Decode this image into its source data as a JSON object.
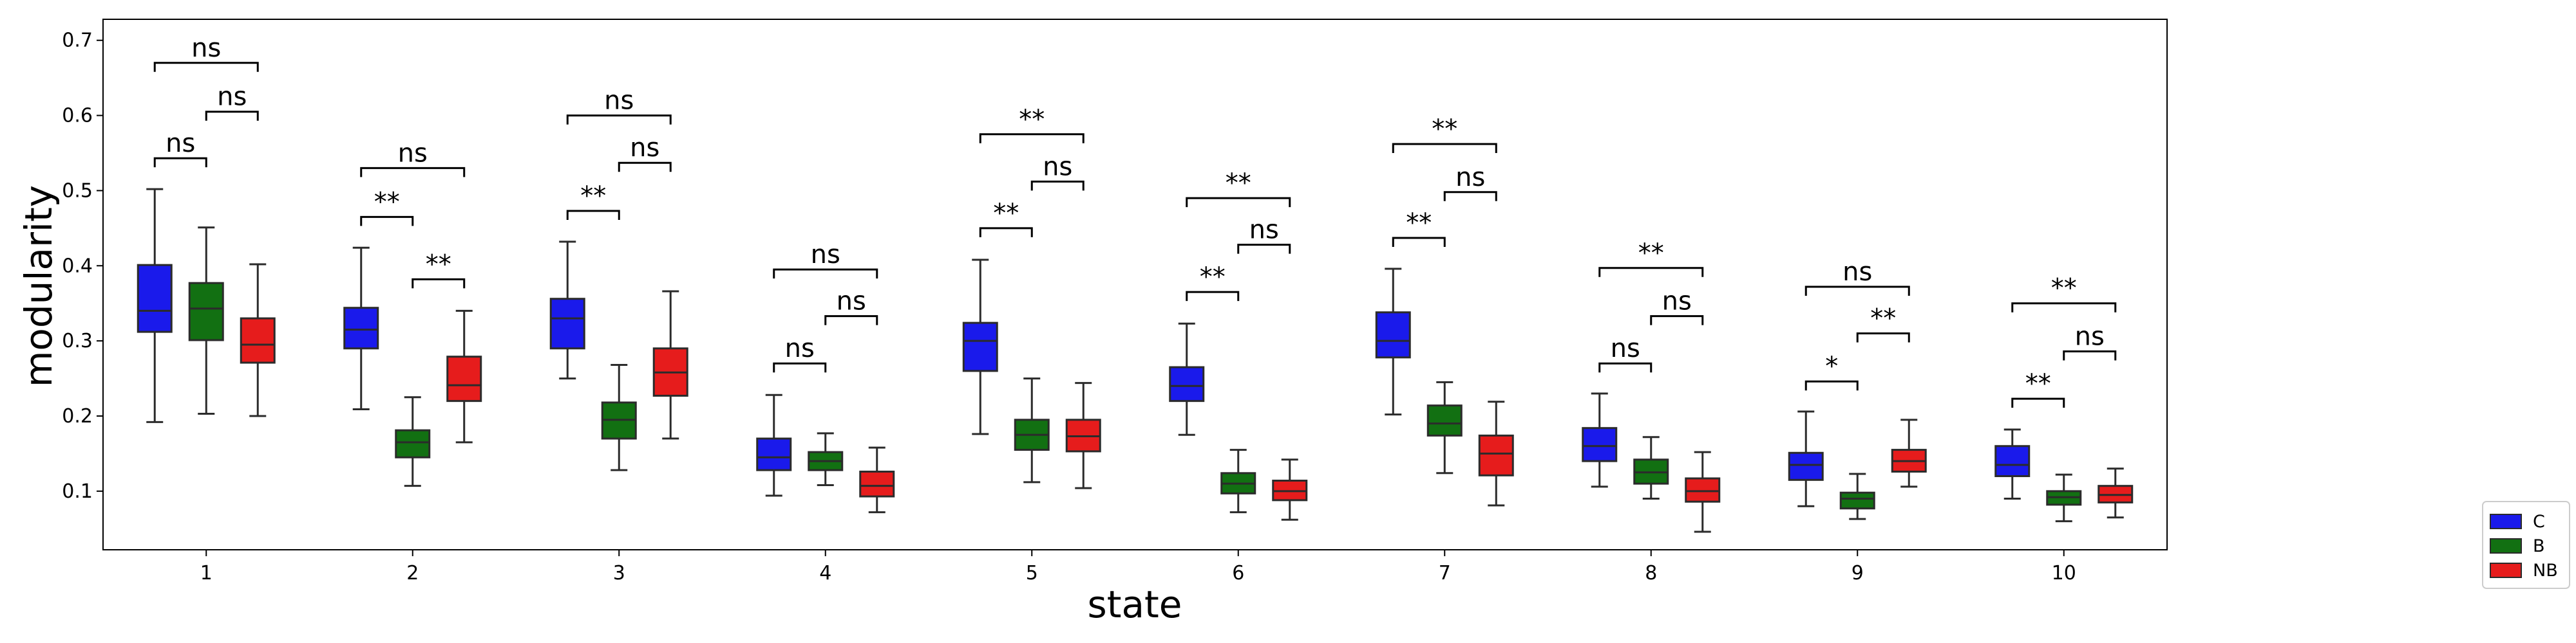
{
  "chart_data": {
    "type": "box",
    "title": "",
    "xlabel": "state",
    "ylabel": "modularity",
    "ylim": [
      0.022,
      0.728
    ],
    "yticks": [
      0.1,
      0.2,
      0.3,
      0.4,
      0.5,
      0.6,
      0.7
    ],
    "ytick_labels": [
      "0.1",
      "0.2",
      "0.3",
      "0.4",
      "0.5",
      "0.6",
      "0.7"
    ],
    "categories": [
      "1",
      "2",
      "3",
      "4",
      "5",
      "6",
      "7",
      "8",
      "9",
      "10"
    ],
    "grid": false,
    "legend": {
      "placement": "outside-right-bottom",
      "entries": [
        {
          "name": "C",
          "color": "#1a1aeb"
        },
        {
          "name": "B",
          "color": "#127012"
        },
        {
          "name": "NB",
          "color": "#e61c1c"
        }
      ]
    },
    "series": [
      {
        "name": "C",
        "color": "#1a1aeb",
        "boxes": [
          {
            "whislo": 0.192,
            "q1": 0.312,
            "med": 0.34,
            "q3": 0.401,
            "whishi": 0.502
          },
          {
            "whislo": 0.209,
            "q1": 0.29,
            "med": 0.315,
            "q3": 0.344,
            "whishi": 0.424
          },
          {
            "whislo": 0.25,
            "q1": 0.29,
            "med": 0.33,
            "q3": 0.356,
            "whishi": 0.432
          },
          {
            "whislo": 0.094,
            "q1": 0.128,
            "med": 0.145,
            "q3": 0.17,
            "whishi": 0.228
          },
          {
            "whislo": 0.176,
            "q1": 0.26,
            "med": 0.3,
            "q3": 0.324,
            "whishi": 0.408
          },
          {
            "whislo": 0.175,
            "q1": 0.22,
            "med": 0.24,
            "q3": 0.265,
            "whishi": 0.323
          },
          {
            "whislo": 0.202,
            "q1": 0.278,
            "med": 0.3,
            "q3": 0.338,
            "whishi": 0.396
          },
          {
            "whislo": 0.106,
            "q1": 0.14,
            "med": 0.16,
            "q3": 0.184,
            "whishi": 0.23
          },
          {
            "whislo": 0.08,
            "q1": 0.115,
            "med": 0.135,
            "q3": 0.151,
            "whishi": 0.206
          },
          {
            "whislo": 0.09,
            "q1": 0.12,
            "med": 0.135,
            "q3": 0.16,
            "whishi": 0.182
          }
        ]
      },
      {
        "name": "B",
        "color": "#127012",
        "boxes": [
          {
            "whislo": 0.203,
            "q1": 0.301,
            "med": 0.343,
            "q3": 0.377,
            "whishi": 0.451
          },
          {
            "whislo": 0.107,
            "q1": 0.145,
            "med": 0.165,
            "q3": 0.181,
            "whishi": 0.225
          },
          {
            "whislo": 0.128,
            "q1": 0.17,
            "med": 0.195,
            "q3": 0.218,
            "whishi": 0.268
          },
          {
            "whislo": 0.108,
            "q1": 0.128,
            "med": 0.14,
            "q3": 0.152,
            "whishi": 0.177
          },
          {
            "whislo": 0.112,
            "q1": 0.155,
            "med": 0.175,
            "q3": 0.195,
            "whishi": 0.25
          },
          {
            "whislo": 0.072,
            "q1": 0.097,
            "med": 0.11,
            "q3": 0.124,
            "whishi": 0.155
          },
          {
            "whislo": 0.124,
            "q1": 0.174,
            "med": 0.19,
            "q3": 0.214,
            "whishi": 0.245
          },
          {
            "whislo": 0.09,
            "q1": 0.11,
            "med": 0.125,
            "q3": 0.142,
            "whishi": 0.172
          },
          {
            "whislo": 0.063,
            "q1": 0.077,
            "med": 0.09,
            "q3": 0.098,
            "whishi": 0.123
          },
          {
            "whislo": 0.06,
            "q1": 0.082,
            "med": 0.092,
            "q3": 0.1,
            "whishi": 0.122
          }
        ]
      },
      {
        "name": "NB",
        "color": "#e61c1c",
        "boxes": [
          {
            "whislo": 0.2,
            "q1": 0.271,
            "med": 0.295,
            "q3": 0.33,
            "whishi": 0.402
          },
          {
            "whislo": 0.165,
            "q1": 0.22,
            "med": 0.241,
            "q3": 0.279,
            "whishi": 0.34
          },
          {
            "whislo": 0.17,
            "q1": 0.227,
            "med": 0.258,
            "q3": 0.29,
            "whishi": 0.366
          },
          {
            "whislo": 0.072,
            "q1": 0.093,
            "med": 0.107,
            "q3": 0.126,
            "whishi": 0.158
          },
          {
            "whislo": 0.104,
            "q1": 0.153,
            "med": 0.173,
            "q3": 0.195,
            "whishi": 0.244
          },
          {
            "whislo": 0.062,
            "q1": 0.088,
            "med": 0.1,
            "q3": 0.114,
            "whishi": 0.142
          },
          {
            "whislo": 0.081,
            "q1": 0.121,
            "med": 0.15,
            "q3": 0.174,
            "whishi": 0.219
          },
          {
            "whislo": 0.046,
            "q1": 0.086,
            "med": 0.1,
            "q3": 0.117,
            "whishi": 0.152
          },
          {
            "whislo": 0.106,
            "q1": 0.126,
            "med": 0.14,
            "q3": 0.155,
            "whishi": 0.195
          },
          {
            "whislo": 0.065,
            "q1": 0.085,
            "med": 0.095,
            "q3": 0.107,
            "whishi": 0.13
          }
        ]
      }
    ],
    "annotations": [
      {
        "category": 1,
        "from": "C",
        "to": "B",
        "label": "ns",
        "y": 0.543
      },
      {
        "category": 1,
        "from": "B",
        "to": "NB",
        "label": "ns",
        "y": 0.605
      },
      {
        "category": 1,
        "from": "C",
        "to": "NB",
        "label": "ns",
        "y": 0.67
      },
      {
        "category": 2,
        "from": "C",
        "to": "B",
        "label": "**",
        "y": 0.465
      },
      {
        "category": 2,
        "from": "B",
        "to": "NB",
        "label": "**",
        "y": 0.382
      },
      {
        "category": 2,
        "from": "C",
        "to": "NB",
        "label": "ns",
        "y": 0.53
      },
      {
        "category": 3,
        "from": "C",
        "to": "B",
        "label": "**",
        "y": 0.473
      },
      {
        "category": 3,
        "from": "B",
        "to": "NB",
        "label": "ns",
        "y": 0.537
      },
      {
        "category": 3,
        "from": "C",
        "to": "NB",
        "label": "ns",
        "y": 0.6
      },
      {
        "category": 4,
        "from": "C",
        "to": "B",
        "label": "ns",
        "y": 0.27
      },
      {
        "category": 4,
        "from": "B",
        "to": "NB",
        "label": "ns",
        "y": 0.333
      },
      {
        "category": 4,
        "from": "C",
        "to": "NB",
        "label": "ns",
        "y": 0.395
      },
      {
        "category": 5,
        "from": "C",
        "to": "B",
        "label": "**",
        "y": 0.45
      },
      {
        "category": 5,
        "from": "B",
        "to": "NB",
        "label": "ns",
        "y": 0.512
      },
      {
        "category": 5,
        "from": "C",
        "to": "NB",
        "label": "**",
        "y": 0.575
      },
      {
        "category": 6,
        "from": "C",
        "to": "B",
        "label": "**",
        "y": 0.365
      },
      {
        "category": 6,
        "from": "B",
        "to": "NB",
        "label": "ns",
        "y": 0.428
      },
      {
        "category": 6,
        "from": "C",
        "to": "NB",
        "label": "**",
        "y": 0.49
      },
      {
        "category": 7,
        "from": "C",
        "to": "B",
        "label": "**",
        "y": 0.437
      },
      {
        "category": 7,
        "from": "B",
        "to": "NB",
        "label": "ns",
        "y": 0.498
      },
      {
        "category": 7,
        "from": "C",
        "to": "NB",
        "label": "**",
        "y": 0.562
      },
      {
        "category": 8,
        "from": "C",
        "to": "B",
        "label": "ns",
        "y": 0.27
      },
      {
        "category": 8,
        "from": "B",
        "to": "NB",
        "label": "ns",
        "y": 0.333
      },
      {
        "category": 8,
        "from": "C",
        "to": "NB",
        "label": "**",
        "y": 0.397
      },
      {
        "category": 9,
        "from": "C",
        "to": "B",
        "label": "*",
        "y": 0.246
      },
      {
        "category": 9,
        "from": "B",
        "to": "NB",
        "label": "**",
        "y": 0.31
      },
      {
        "category": 9,
        "from": "C",
        "to": "NB",
        "label": "ns",
        "y": 0.372
      },
      {
        "category": 10,
        "from": "C",
        "to": "B",
        "label": "**",
        "y": 0.223
      },
      {
        "category": 10,
        "from": "B",
        "to": "NB",
        "label": "ns",
        "y": 0.286
      },
      {
        "category": 10,
        "from": "C",
        "to": "NB",
        "label": "**",
        "y": 0.35
      }
    ]
  }
}
